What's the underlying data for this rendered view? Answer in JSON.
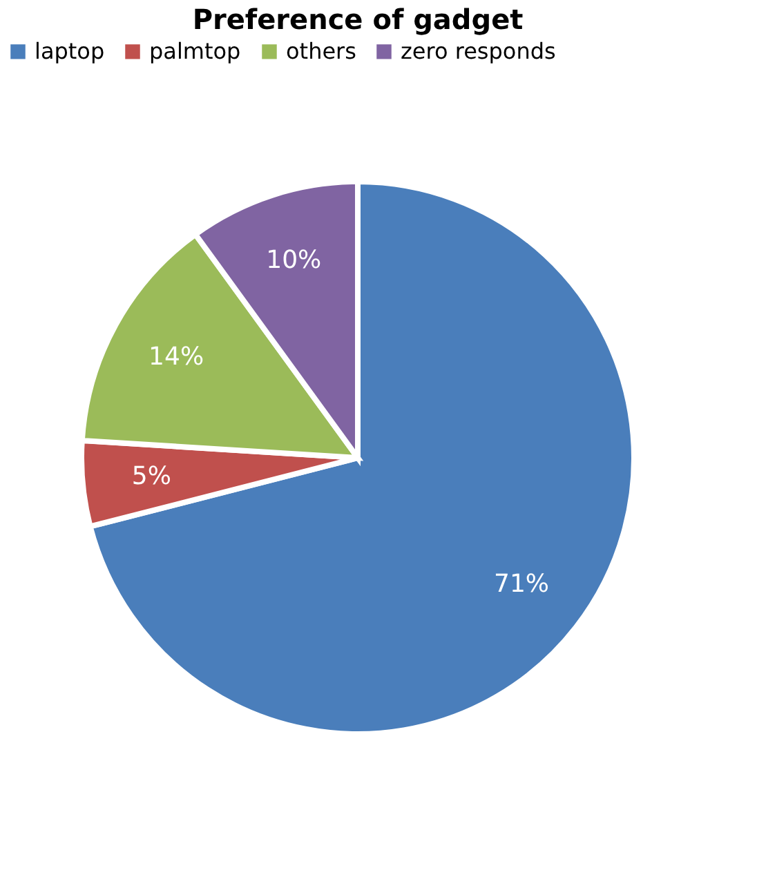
{
  "chart_data": {
    "type": "pie",
    "title": "Preference of gadget",
    "categories": [
      "laptop",
      "palmtop",
      "others",
      "zero responds"
    ],
    "values": [
      71,
      5,
      14,
      10
    ],
    "value_labels": [
      "71%",
      "5%",
      "14%",
      "10%"
    ],
    "colors": [
      "#4a7ebb",
      "#c0504d",
      "#9bbb59",
      "#8064a2"
    ],
    "legend": "top"
  }
}
